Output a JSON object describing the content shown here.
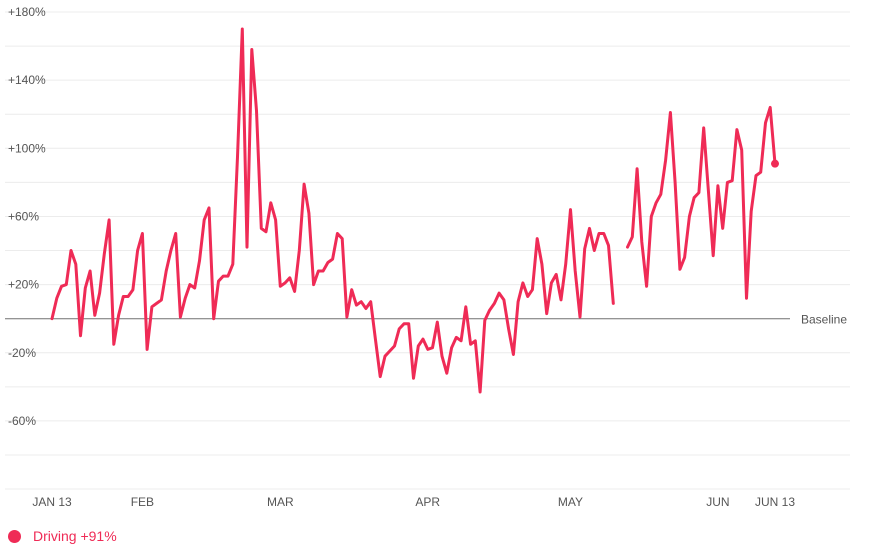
{
  "chart_data": {
    "type": "line",
    "title": "",
    "xlabel": "",
    "ylabel": "",
    "ylim": [
      -80,
      180
    ],
    "y_ticks": [
      {
        "value": 180,
        "label": "+180%"
      },
      {
        "value": 140,
        "label": "+140%"
      },
      {
        "value": 100,
        "label": "+100%"
      },
      {
        "value": 60,
        "label": "+60%"
      },
      {
        "value": 20,
        "label": "+20%"
      },
      {
        "value": -20,
        "label": "-20%"
      },
      {
        "value": -60,
        "label": "-60%"
      }
    ],
    "x_ticks": [
      {
        "date": "2020-01-13",
        "label": "JAN 13"
      },
      {
        "date": "2020-02-01",
        "label": "FEB"
      },
      {
        "date": "2020-03-01",
        "label": "MAR"
      },
      {
        "date": "2020-04-01",
        "label": "APR"
      },
      {
        "date": "2020-05-01",
        "label": "MAY"
      },
      {
        "date": "2020-06-01",
        "label": "JUN"
      },
      {
        "date": "2020-06-13",
        "label": "JUN 13"
      }
    ],
    "baseline": {
      "value": 0,
      "label": "Baseline"
    },
    "grid": true,
    "legend_position": "bottom-left",
    "series": [
      {
        "name": "Driving",
        "legend_label": "Driving +91%",
        "color": "#ef2b56",
        "points": [
          [
            "2020-01-13",
            0
          ],
          [
            "2020-01-14",
            12
          ],
          [
            "2020-01-15",
            19
          ],
          [
            "2020-01-16",
            20
          ],
          [
            "2020-01-17",
            40
          ],
          [
            "2020-01-18",
            32
          ],
          [
            "2020-01-19",
            -10
          ],
          [
            "2020-01-20",
            18
          ],
          [
            "2020-01-21",
            28
          ],
          [
            "2020-01-22",
            2
          ],
          [
            "2020-01-23",
            15
          ],
          [
            "2020-01-24",
            38
          ],
          [
            "2020-01-25",
            58
          ],
          [
            "2020-01-26",
            -15
          ],
          [
            "2020-01-27",
            2
          ],
          [
            "2020-01-28",
            13
          ],
          [
            "2020-01-29",
            13
          ],
          [
            "2020-01-30",
            17
          ],
          [
            "2020-01-31",
            40
          ],
          [
            "2020-02-01",
            50
          ],
          [
            "2020-02-02",
            -18
          ],
          [
            "2020-02-03",
            7
          ],
          [
            "2020-02-04",
            9
          ],
          [
            "2020-02-05",
            11
          ],
          [
            "2020-02-06",
            28
          ],
          [
            "2020-02-07",
            40
          ],
          [
            "2020-02-08",
            50
          ],
          [
            "2020-02-09",
            1
          ],
          [
            "2020-02-10",
            12
          ],
          [
            "2020-02-11",
            20
          ],
          [
            "2020-02-12",
            18
          ],
          [
            "2020-02-13",
            34
          ],
          [
            "2020-02-14",
            58
          ],
          [
            "2020-02-15",
            65
          ],
          [
            "2020-02-16",
            0
          ],
          [
            "2020-02-17",
            22
          ],
          [
            "2020-02-18",
            25
          ],
          [
            "2020-02-19",
            25
          ],
          [
            "2020-02-20",
            32
          ],
          [
            "2020-02-21",
            95
          ],
          [
            "2020-02-22",
            170
          ],
          [
            "2020-02-23",
            42
          ],
          [
            "2020-02-24",
            158
          ],
          [
            "2020-02-25",
            122
          ],
          [
            "2020-02-26",
            53
          ],
          [
            "2020-02-27",
            51
          ],
          [
            "2020-02-28",
            68
          ],
          [
            "2020-02-29",
            58
          ],
          [
            "2020-03-01",
            19
          ],
          [
            "2020-03-02",
            21
          ],
          [
            "2020-03-03",
            24
          ],
          [
            "2020-03-04",
            16
          ],
          [
            "2020-03-05",
            40
          ],
          [
            "2020-03-06",
            79
          ],
          [
            "2020-03-07",
            62
          ],
          [
            "2020-03-08",
            20
          ],
          [
            "2020-03-09",
            28
          ],
          [
            "2020-03-10",
            28
          ],
          [
            "2020-03-11",
            33
          ],
          [
            "2020-03-12",
            35
          ],
          [
            "2020-03-13",
            50
          ],
          [
            "2020-03-14",
            47
          ],
          [
            "2020-03-15",
            1
          ],
          [
            "2020-03-16",
            17
          ],
          [
            "2020-03-17",
            8
          ],
          [
            "2020-03-18",
            10
          ],
          [
            "2020-03-19",
            6
          ],
          [
            "2020-03-20",
            10
          ],
          [
            "2020-03-21",
            -12
          ],
          [
            "2020-03-22",
            -34
          ],
          [
            "2020-03-23",
            -22
          ],
          [
            "2020-03-24",
            -19
          ],
          [
            "2020-03-25",
            -16
          ],
          [
            "2020-03-26",
            -6
          ],
          [
            "2020-03-27",
            -3
          ],
          [
            "2020-03-28",
            -3
          ],
          [
            "2020-03-29",
            -35
          ],
          [
            "2020-03-30",
            -16
          ],
          [
            "2020-03-31",
            -12
          ],
          [
            "2020-04-01",
            -18
          ],
          [
            "2020-04-02",
            -17
          ],
          [
            "2020-04-03",
            -2
          ],
          [
            "2020-04-04",
            -22
          ],
          [
            "2020-04-05",
            -32
          ],
          [
            "2020-04-06",
            -17
          ],
          [
            "2020-04-07",
            -11
          ],
          [
            "2020-04-08",
            -13
          ],
          [
            "2020-04-09",
            7
          ],
          [
            "2020-04-10",
            -15
          ],
          [
            "2020-04-11",
            -13
          ],
          [
            "2020-04-12",
            -43
          ],
          [
            "2020-04-13",
            -1
          ],
          [
            "2020-04-14",
            5
          ],
          [
            "2020-04-15",
            9
          ],
          [
            "2020-04-16",
            15
          ],
          [
            "2020-04-17",
            11
          ],
          [
            "2020-04-18",
            -6
          ],
          [
            "2020-04-19",
            -21
          ],
          [
            "2020-04-20",
            10
          ],
          [
            "2020-04-21",
            21
          ],
          [
            "2020-04-22",
            13
          ],
          [
            "2020-04-23",
            17
          ],
          [
            "2020-04-24",
            47
          ],
          [
            "2020-04-25",
            32
          ],
          [
            "2020-04-26",
            3
          ],
          [
            "2020-04-27",
            21
          ],
          [
            "2020-04-28",
            26
          ],
          [
            "2020-04-29",
            11
          ],
          [
            "2020-04-30",
            32
          ],
          [
            "2020-05-01",
            64
          ],
          [
            "2020-05-02",
            28
          ],
          [
            "2020-05-03",
            1
          ],
          [
            "2020-05-04",
            41
          ],
          [
            "2020-05-05",
            53
          ],
          [
            "2020-05-06",
            40
          ],
          [
            "2020-05-07",
            50
          ],
          [
            "2020-05-08",
            50
          ],
          [
            "2020-05-09",
            43
          ],
          [
            "2020-05-10",
            9
          ],
          [
            "2020-05-11",
            null
          ],
          [
            "2020-05-12",
            null
          ],
          [
            "2020-05-13",
            42
          ],
          [
            "2020-05-14",
            48
          ],
          [
            "2020-05-15",
            88
          ],
          [
            "2020-05-16",
            45
          ],
          [
            "2020-05-17",
            19
          ],
          [
            "2020-05-18",
            60
          ],
          [
            "2020-05-19",
            68
          ],
          [
            "2020-05-20",
            73
          ],
          [
            "2020-05-21",
            93
          ],
          [
            "2020-05-22",
            121
          ],
          [
            "2020-05-23",
            80
          ],
          [
            "2020-05-24",
            29
          ],
          [
            "2020-05-25",
            36
          ],
          [
            "2020-05-26",
            60
          ],
          [
            "2020-05-27",
            71
          ],
          [
            "2020-05-28",
            74
          ],
          [
            "2020-05-29",
            112
          ],
          [
            "2020-05-30",
            75
          ],
          [
            "2020-05-31",
            37
          ],
          [
            "2020-06-01",
            78
          ],
          [
            "2020-06-02",
            53
          ],
          [
            "2020-06-03",
            80
          ],
          [
            "2020-06-04",
            81
          ],
          [
            "2020-06-05",
            111
          ],
          [
            "2020-06-06",
            99
          ],
          [
            "2020-06-07",
            12
          ],
          [
            "2020-06-08",
            63
          ],
          [
            "2020-06-09",
            84
          ],
          [
            "2020-06-10",
            86
          ],
          [
            "2020-06-11",
            115
          ],
          [
            "2020-06-12",
            124
          ],
          [
            "2020-06-13",
            91
          ]
        ]
      }
    ]
  }
}
